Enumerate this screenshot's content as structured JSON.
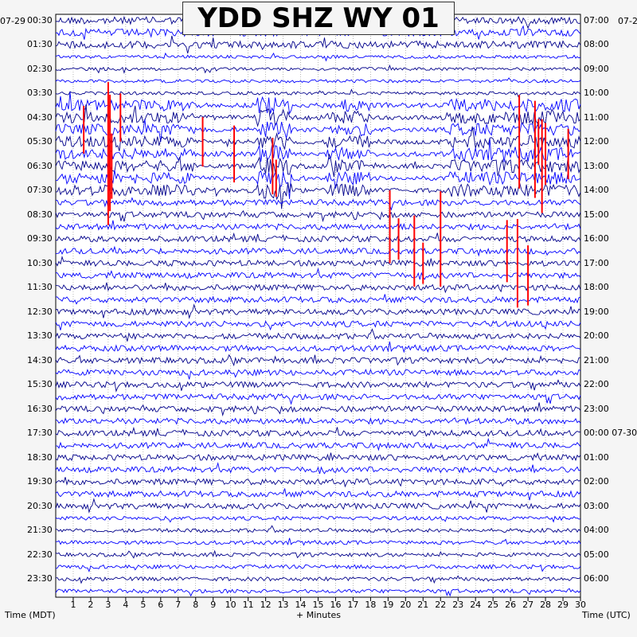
{
  "chart_data": {
    "type": "line",
    "title": "YDD SHZ WY 01",
    "left_date_label": "07-29",
    "right_date_label": "07-2",
    "xlabel": "+ Minutes",
    "left_axis_label": "Time (MDT)",
    "right_axis_label": "Time (UTC)",
    "x_ticks": [
      "1",
      "2",
      "3",
      "4",
      "5",
      "6",
      "7",
      "8",
      "9",
      "10",
      "11",
      "12",
      "13",
      "14",
      "15",
      "16",
      "17",
      "18",
      "19",
      "20",
      "21",
      "22",
      "23",
      "24",
      "25",
      "26",
      "27",
      "28",
      "29",
      "30"
    ],
    "xlim": [
      0,
      30
    ],
    "left_time_labels": [
      "00:30",
      "01:30",
      "02:30",
      "03:30",
      "04:30",
      "05:30",
      "06:30",
      "07:30",
      "08:30",
      "09:30",
      "10:30",
      "11:30",
      "12:30",
      "13:30",
      "14:30",
      "15:30",
      "16:30",
      "17:30",
      "18:30",
      "19:30",
      "20:30",
      "21:30",
      "22:30",
      "23:30"
    ],
    "right_time_labels": [
      "07:00",
      "08:00",
      "09:00",
      "10:00",
      "11:00",
      "12:00",
      "13:00",
      "14:00",
      "15:00",
      "16:00",
      "17:00",
      "18:00",
      "19:00",
      "20:00",
      "21:00",
      "22:00",
      "23:00",
      "00:00 07-30",
      "01:00",
      "02:00",
      "03:00",
      "04:00",
      "05:00",
      "06:00"
    ],
    "trace_count": 48,
    "trace_colors": [
      "#00008b",
      "#0000ff"
    ],
    "clip_color": "#ff0000",
    "grid": true
  }
}
